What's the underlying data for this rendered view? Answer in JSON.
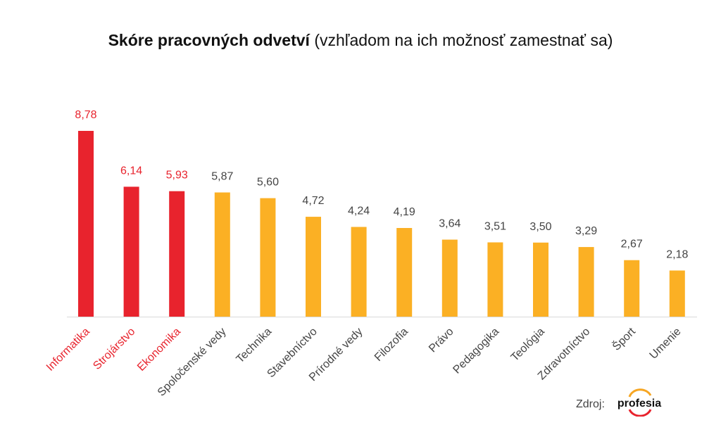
{
  "chart_data": {
    "type": "bar",
    "title_bold": "Skóre pracovných odvetví",
    "title_rest": "(vzhľadom na ich možnosť zamestnať sa)",
    "categories": [
      "Informatika",
      "Strojárstvo",
      "Ekonomika",
      "Spoločenské vedy",
      "Technika",
      "Stavebníctvo",
      "Prírodné vedy",
      "Filozofia",
      "Právo",
      "Pedagogika",
      "Teológia",
      "Zdravotníctvo",
      "Šport",
      "Umenie"
    ],
    "values": [
      8.78,
      6.14,
      5.93,
      5.87,
      5.6,
      4.72,
      4.24,
      4.19,
      3.64,
      3.51,
      3.5,
      3.29,
      2.67,
      2.18
    ],
    "value_labels": [
      "8,78",
      "6,14",
      "5,93",
      "5,87",
      "5,60",
      "4,72",
      "4,24",
      "4,19",
      "3,64",
      "3,51",
      "3,50",
      "3,29",
      "2,67",
      "2,18"
    ],
    "highlight_count": 3,
    "colors": {
      "highlight": "#e8232d",
      "normal": "#fbb024",
      "highlight_text": "#e8232d",
      "normal_text": "#444444",
      "axis": "#d9d9d9"
    },
    "xlabel": "",
    "ylabel": "",
    "ylim": [
      0,
      9
    ],
    "grid": false
  },
  "source": {
    "label": "Zdroj:",
    "logo_text": "profesia"
  }
}
